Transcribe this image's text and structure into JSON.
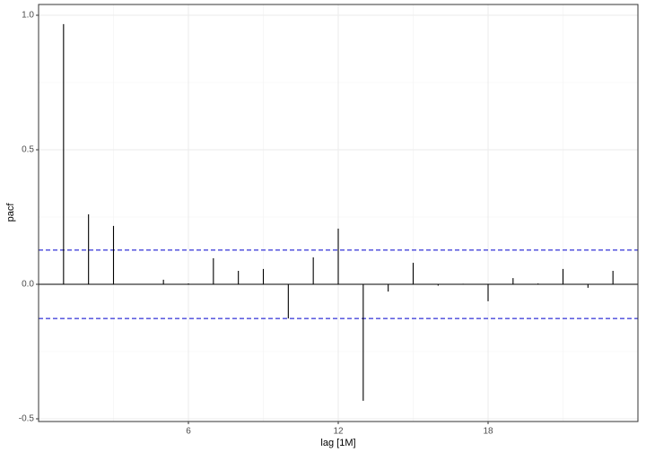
{
  "chart_data": {
    "type": "lollipop",
    "x_label": "lag [1M]",
    "y_label": "pacf",
    "x": [
      1,
      2,
      3,
      4,
      5,
      6,
      7,
      8,
      9,
      10,
      11,
      12,
      13,
      14,
      15,
      16,
      17,
      18,
      19,
      20,
      21,
      22,
      23
    ],
    "values": [
      0.967,
      0.26,
      0.217,
      0.0,
      0.017,
      0.003,
      0.097,
      0.05,
      0.057,
      -0.127,
      0.1,
      0.207,
      -0.433,
      -0.027,
      0.08,
      -0.005,
      0.002,
      -0.063,
      0.023,
      0.003,
      0.057,
      -0.013,
      0.05
    ],
    "color": "#000000",
    "confidence_bounds": [
      0.127,
      -0.127
    ],
    "bound_color": "#0000cc",
    "xlim": [
      0,
      24
    ],
    "ylim": [
      -0.51,
      1.04
    ],
    "xticks": [
      6,
      12,
      18
    ],
    "yticks": [
      {
        "value": -0.5,
        "label": "-0.5"
      },
      {
        "value": 0,
        "label": "0.0"
      },
      {
        "value": 0.5,
        "label": "0.5"
      },
      {
        "value": 1,
        "label": "1.0"
      }
    ],
    "x_minor_ticks": [
      3,
      9,
      15,
      21
    ],
    "y_minor_ticks": [
      -0.25,
      0.25,
      0.75
    ],
    "grid": true
  }
}
